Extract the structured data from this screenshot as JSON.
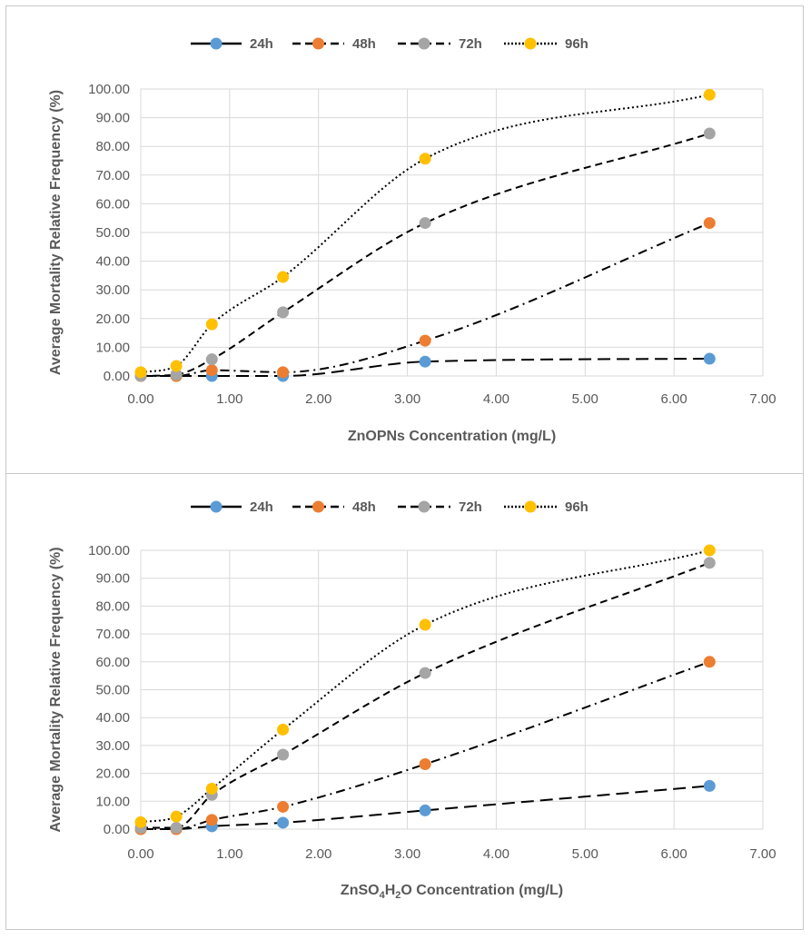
{
  "colors": {
    "24h": "#5b9bd5",
    "48h": "#ed7d31",
    "72h": "#a5a5a5",
    "96h": "#ffc000",
    "line": "#000000",
    "grid": "#d9d9d9",
    "text": "#595959"
  },
  "chart_data": [
    {
      "type": "line",
      "xlabel": "ZnOPNs Concentration (mg/L)",
      "ylabel": "Average Mortality Relative Frequency (%)",
      "xlim": [
        0,
        7
      ],
      "ylim": [
        0,
        100
      ],
      "xticks": [
        "0.00",
        "1.00",
        "2.00",
        "3.00",
        "4.00",
        "5.00",
        "6.00",
        "7.00"
      ],
      "yticks": [
        "0.00",
        "10.00",
        "20.00",
        "30.00",
        "40.00",
        "50.00",
        "60.00",
        "70.00",
        "80.00",
        "90.00",
        "100.00"
      ],
      "x": [
        0,
        0.4,
        0.8,
        1.6,
        3.2,
        6.4
      ],
      "series": [
        {
          "name": "24h",
          "dash": "long",
          "values": [
            0,
            0,
            0,
            0,
            5,
            6
          ]
        },
        {
          "name": "48h",
          "dash": "dashdot",
          "values": [
            0,
            0,
            2,
            1.3,
            12.3,
            53.3
          ]
        },
        {
          "name": "72h",
          "dash": "dash",
          "values": [
            0,
            0.5,
            5.8,
            22.2,
            53.3,
            84.5
          ]
        },
        {
          "name": "96h",
          "dash": "dot",
          "values": [
            1.3,
            3.5,
            18,
            34.5,
            75.7,
            98
          ]
        }
      ],
      "legend": "top"
    },
    {
      "type": "line",
      "xlabel": "ZnSO4H2O Concentration (mg/L)",
      "xlabel_parts": {
        "pre": "ZnSO",
        "sub1": "4",
        "mid": "H",
        "sub2": "2",
        "post": "O Concentration (mg/L)"
      },
      "ylabel": "Average Mortality  Relative Frequency (%)",
      "xlim": [
        0,
        7
      ],
      "ylim": [
        0,
        100
      ],
      "xticks": [
        "0.00",
        "1.00",
        "2.00",
        "3.00",
        "4.00",
        "5.00",
        "6.00",
        "7.00"
      ],
      "yticks": [
        "0.00",
        "10.00",
        "20.00",
        "30.00",
        "40.00",
        "50.00",
        "60.00",
        "70.00",
        "80.00",
        "90.00",
        "100.00"
      ],
      "x": [
        0,
        0.4,
        0.8,
        1.6,
        3.2,
        6.4
      ],
      "series": [
        {
          "name": "24h",
          "dash": "long",
          "values": [
            0,
            0,
            1,
            2.3,
            6.7,
            15.5
          ]
        },
        {
          "name": "48h",
          "dash": "dashdot",
          "values": [
            0,
            0,
            3.3,
            8,
            23.3,
            60
          ]
        },
        {
          "name": "72h",
          "dash": "dash",
          "values": [
            0.5,
            0.5,
            12.3,
            26.7,
            56,
            95.5
          ]
        },
        {
          "name": "96h",
          "dash": "dot",
          "values": [
            2.5,
            4.5,
            14.5,
            35.7,
            73.3,
            100
          ]
        }
      ],
      "legend": "top"
    }
  ]
}
